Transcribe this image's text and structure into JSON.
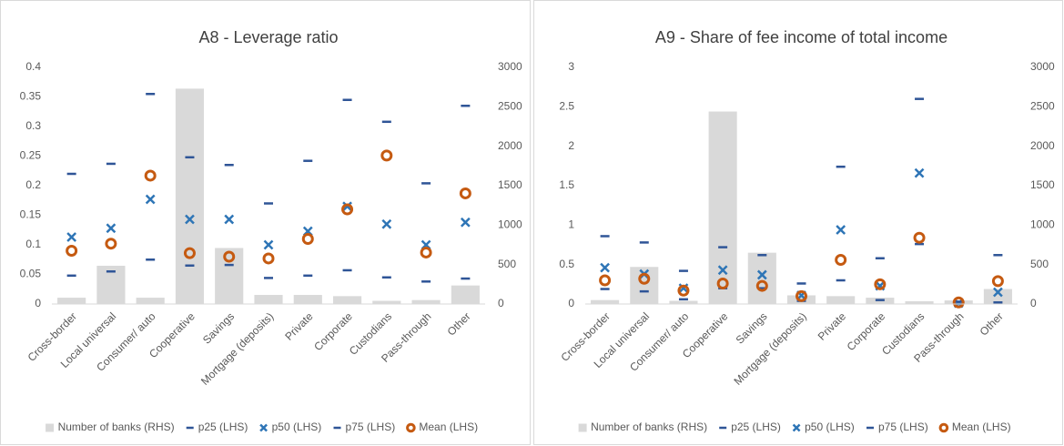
{
  "chart_data": [
    {
      "type": "combo",
      "title": "A8 - Leverage ratio",
      "categories": [
        "Cross-border",
        "Local universal",
        "Consumer/ auto",
        "Cooperative",
        "Savings",
        "Mortgage (deposits)",
        "Private",
        "Corporate",
        "Custodians",
        "Pass-through",
        "Other"
      ],
      "ylim": [
        0,
        0.4
      ],
      "yticks": [
        0,
        0.05,
        0.1,
        0.15,
        0.2,
        0.25,
        0.3,
        0.35,
        0.4
      ],
      "y2lim": [
        0,
        3000
      ],
      "y2ticks": [
        0,
        500,
        1000,
        1500,
        2000,
        2500,
        3000
      ],
      "legend": "bottom",
      "series": [
        {
          "name": "Number of banks (RHS)",
          "color": "#d9d9d9",
          "marker": "bar",
          "axis": "y2",
          "values": [
            80,
            485,
            80,
            2730,
            710,
            115,
            115,
            100,
            40,
            50,
            235
          ]
        },
        {
          "name": "p25 (LHS)",
          "color": "#2f5597",
          "marker": "dash",
          "values": [
            0.048,
            0.055,
            0.075,
            0.065,
            0.066,
            0.044,
            0.048,
            0.057,
            0.045,
            0.038,
            0.043
          ]
        },
        {
          "name": "p50 (LHS)",
          "color": "#2e75b6",
          "marker": "x",
          "values": [
            0.113,
            0.128,
            0.177,
            0.143,
            0.143,
            0.1,
            0.123,
            0.165,
            0.135,
            0.1,
            0.138
          ]
        },
        {
          "name": "p75 (LHS)",
          "color": "#2f5597",
          "marker": "dash",
          "values": [
            0.22,
            0.237,
            0.355,
            0.248,
            0.235,
            0.17,
            0.242,
            0.345,
            0.308,
            0.204,
            0.335
          ]
        },
        {
          "name": "Mean (LHS)",
          "color": "#c55a11",
          "marker": "circle",
          "values": [
            0.09,
            0.102,
            0.217,
            0.086,
            0.08,
            0.077,
            0.11,
            0.16,
            0.251,
            0.087,
            0.187
          ]
        }
      ]
    },
    {
      "type": "combo",
      "title": "A9 - Share of fee income of total income",
      "categories": [
        "Cross-border",
        "Local universal",
        "Consumer/ auto",
        "Cooperative",
        "Savings",
        "Mortgage (deposits)",
        "Private",
        "Corporate",
        "Custodians",
        "Pass-through",
        "Other"
      ],
      "ylim": [
        0,
        3
      ],
      "yticks": [
        0,
        0.5,
        1,
        1.5,
        2,
        2.5,
        3
      ],
      "y2lim": [
        0,
        3000
      ],
      "y2ticks": [
        0,
        500,
        1000,
        1500,
        2000,
        2500,
        3000
      ],
      "legend": "bottom",
      "series": [
        {
          "name": "Number of banks (RHS)",
          "color": "#d9d9d9",
          "marker": "bar",
          "axis": "y2",
          "values": [
            50,
            470,
            40,
            2440,
            650,
            110,
            100,
            80,
            35,
            45,
            190
          ]
        },
        {
          "name": "p25 (LHS)",
          "color": "#2f5597",
          "marker": "dash",
          "values": [
            0.19,
            0.16,
            0.06,
            0.2,
            0.2,
            0.04,
            0.3,
            0.05,
            0.76,
            0,
            0.02
          ]
        },
        {
          "name": "p50 (LHS)",
          "color": "#2e75b6",
          "marker": "x",
          "values": [
            0.46,
            0.38,
            0.2,
            0.43,
            0.37,
            0.11,
            0.94,
            0.23,
            1.66,
            0.01,
            0.15
          ]
        },
        {
          "name": "p75 (LHS)",
          "color": "#2f5597",
          "marker": "dash",
          "values": [
            0.86,
            0.78,
            0.42,
            0.72,
            0.62,
            0.26,
            1.74,
            0.58,
            2.6,
            0.03,
            0.62
          ]
        },
        {
          "name": "Mean (LHS)",
          "color": "#c55a11",
          "marker": "circle",
          "values": [
            0.3,
            0.32,
            0.17,
            0.26,
            0.23,
            0.1,
            0.56,
            0.25,
            0.84,
            0.02,
            0.29
          ]
        }
      ]
    }
  ]
}
